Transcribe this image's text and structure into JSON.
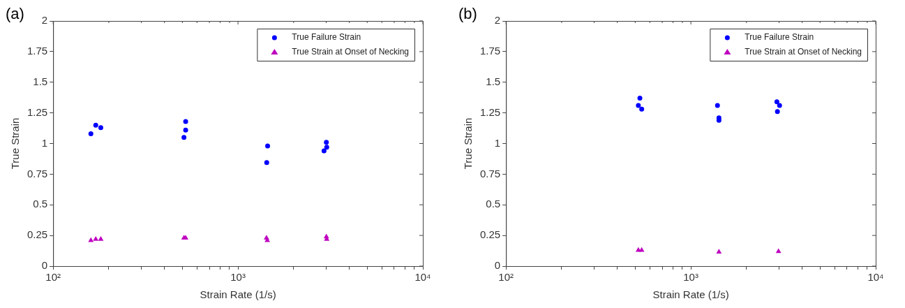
{
  "chart_data": [
    {
      "type": "scatter",
      "title": "(a)",
      "xlabel": "Strain Rate (1/s)",
      "ylabel": "True Strain",
      "log": "x",
      "grid": false,
      "legend": "top right",
      "xlim": [
        100,
        10000
      ],
      "xticks": [
        {
          "value": 100,
          "label": "10²"
        },
        {
          "value": 200,
          "label": null
        },
        {
          "value": 300,
          "label": null
        },
        {
          "value": 400,
          "label": null
        },
        {
          "value": 500,
          "label": null
        },
        {
          "value": 600,
          "label": null
        },
        {
          "value": 700,
          "label": null
        },
        {
          "value": 800,
          "label": null
        },
        {
          "value": 900,
          "label": null
        },
        {
          "value": 1000,
          "label": "10³"
        },
        {
          "value": 2000,
          "label": null
        },
        {
          "value": 3000,
          "label": null
        },
        {
          "value": 4000,
          "label": null
        },
        {
          "value": 5000,
          "label": null
        },
        {
          "value": 6000,
          "label": null
        },
        {
          "value": 7000,
          "label": null
        },
        {
          "value": 8000,
          "label": null
        },
        {
          "value": 9000,
          "label": null
        },
        {
          "value": 10000,
          "label": "10⁴"
        }
      ],
      "ylim": [
        0,
        2
      ],
      "yticks": [
        0,
        0.25,
        0.5,
        0.75,
        1,
        1.25,
        1.5,
        1.75,
        2
      ],
      "series": [
        {
          "name": "True Failure Strain",
          "color": "#0000ff",
          "marker": "circle",
          "x": [
            160,
            170,
            181,
            510,
            521,
            521,
            1446,
            1430,
            3006,
            2920,
            3020
          ],
          "values": [
            1.08,
            1.15,
            1.13,
            1.05,
            1.18,
            1.11,
            0.98,
            0.845,
            1.01,
            0.94,
            0.97
          ]
        },
        {
          "name": "True Strain at Onset of Necking",
          "color": "#bf00bf",
          "marker": "triangle",
          "x": [
            160,
            170,
            181,
            510,
            521,
            1426,
            1440,
            3006,
            3020
          ],
          "values": [
            0.21,
            0.22,
            0.22,
            0.23,
            0.23,
            0.23,
            0.21,
            0.24,
            0.22
          ]
        }
      ]
    },
    {
      "type": "scatter",
      "title": "(b)",
      "xlabel": "Strain Rate (1/s)",
      "ylabel": "True Strain",
      "log": "x",
      "grid": false,
      "legend": "top right",
      "xlim": [
        100,
        10000
      ],
      "xticks": [
        {
          "value": 100,
          "label": "10²"
        },
        {
          "value": 200,
          "label": null
        },
        {
          "value": 300,
          "label": null
        },
        {
          "value": 400,
          "label": null
        },
        {
          "value": 500,
          "label": null
        },
        {
          "value": 600,
          "label": null
        },
        {
          "value": 700,
          "label": null
        },
        {
          "value": 800,
          "label": null
        },
        {
          "value": 900,
          "label": null
        },
        {
          "value": 1000,
          "label": "10³"
        },
        {
          "value": 2000,
          "label": null
        },
        {
          "value": 3000,
          "label": null
        },
        {
          "value": 4000,
          "label": null
        },
        {
          "value": 5000,
          "label": null
        },
        {
          "value": 6000,
          "label": null
        },
        {
          "value": 7000,
          "label": null
        },
        {
          "value": 8000,
          "label": null
        },
        {
          "value": 9000,
          "label": null
        },
        {
          "value": 10000,
          "label": "10⁴"
        }
      ],
      "ylim": [
        0,
        2
      ],
      "yticks": [
        0,
        0.25,
        0.5,
        0.75,
        1,
        1.25,
        1.5,
        1.75,
        2
      ],
      "series": [
        {
          "name": "True Failure Strain",
          "color": "#0000ff",
          "marker": "circle",
          "x": [
            530,
            520,
            542,
            1393,
            1419,
            1419,
            2920,
            3020,
            2940
          ],
          "values": [
            1.37,
            1.31,
            1.28,
            1.31,
            1.21,
            1.19,
            1.34,
            1.31,
            1.26
          ]
        },
        {
          "name": "True Strain at Onset of Necking",
          "color": "#bf00bf",
          "marker": "triangle",
          "x": [
            520,
            542,
            1419,
            2980
          ],
          "values": [
            0.13,
            0.13,
            0.115,
            0.12
          ]
        }
      ]
    }
  ]
}
